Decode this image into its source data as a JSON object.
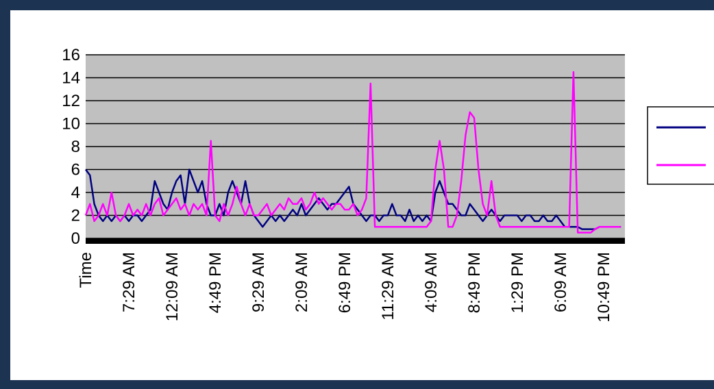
{
  "chart_data": {
    "type": "line",
    "categories": [
      "Time",
      null,
      null,
      null,
      null,
      null,
      null,
      null,
      null,
      null,
      "7:29 AM",
      null,
      null,
      null,
      null,
      null,
      null,
      null,
      null,
      null,
      "12:09 AM",
      null,
      null,
      null,
      null,
      null,
      null,
      null,
      null,
      null,
      "4:49 PM",
      null,
      null,
      null,
      null,
      null,
      null,
      null,
      null,
      null,
      "9:29 AM",
      null,
      null,
      null,
      null,
      null,
      null,
      null,
      null,
      null,
      "2:09 AM",
      null,
      null,
      null,
      null,
      null,
      null,
      null,
      null,
      null,
      "6:49 PM",
      null,
      null,
      null,
      null,
      null,
      null,
      null,
      null,
      null,
      "11:29 AM",
      null,
      null,
      null,
      null,
      null,
      null,
      null,
      null,
      null,
      "4:09 AM",
      null,
      null,
      null,
      null,
      null,
      null,
      null,
      null,
      null,
      "8:49 PM",
      null,
      null,
      null,
      null,
      null,
      null,
      null,
      null,
      null,
      "1:29 PM",
      null,
      null,
      null,
      null,
      null,
      null,
      null,
      null,
      null,
      "6:09 AM",
      null,
      null,
      null,
      null,
      null,
      null,
      null,
      null,
      null,
      "10:49 PM",
      null,
      null,
      null,
      null
    ],
    "series": [
      {
        "color": "#000080",
        "values": [
          6,
          5.5,
          3,
          2,
          1.5,
          2,
          1.5,
          2,
          1.5,
          2,
          1.5,
          2,
          2,
          1.5,
          2,
          2.5,
          5,
          4,
          3,
          2.5,
          4,
          5,
          5.5,
          3,
          6,
          5,
          4,
          5,
          3,
          2,
          2,
          3,
          2,
          4,
          5,
          4,
          3,
          5,
          3,
          2,
          1.5,
          1,
          1.5,
          2,
          1.5,
          2,
          1.5,
          2,
          2.5,
          2,
          3,
          2,
          2.5,
          3,
          3.5,
          3,
          2.5,
          3,
          3,
          3.5,
          4,
          4.5,
          3,
          2.5,
          2,
          1.5,
          2,
          2,
          1.5,
          2,
          2,
          3,
          2,
          2,
          1.5,
          2.5,
          1.5,
          2,
          1.5,
          2,
          1.5,
          4,
          5,
          4,
          3,
          3,
          2.5,
          2,
          2,
          3,
          2.5,
          2,
          1.5,
          2,
          2.5,
          2,
          1.5,
          2,
          2,
          2,
          2,
          1.5,
          2,
          2,
          1.5,
          1.5,
          2,
          1.5,
          1.5,
          2,
          1.5,
          1,
          1,
          1,
          1,
          0.8,
          0.8,
          0.8,
          0.8,
          1,
          1,
          1,
          1,
          1,
          1
        ]
      },
      {
        "color": "#ff00ff",
        "values": [
          2,
          3,
          1.5,
          2,
          3,
          2,
          4,
          2,
          1.5,
          2,
          3,
          2,
          2.5,
          2,
          3,
          2,
          3,
          3.5,
          2,
          2.5,
          3,
          3.5,
          2.5,
          3,
          2,
          3,
          2.5,
          3,
          2,
          8.5,
          2,
          1.5,
          3,
          2,
          3,
          4.5,
          3,
          2,
          3,
          2,
          2,
          2.5,
          3,
          2,
          2.5,
          3,
          2.5,
          3.5,
          3,
          3,
          3.5,
          2.5,
          3,
          4,
          3,
          3.5,
          3,
          2.5,
          3,
          3,
          2.5,
          2.5,
          3,
          2,
          2.5,
          3.5,
          13.5,
          1,
          1,
          1,
          1,
          1,
          1,
          1,
          1,
          1,
          1,
          1,
          1,
          1,
          1.5,
          6,
          8.5,
          6,
          1,
          1,
          2,
          5,
          9,
          11,
          10.5,
          6,
          3,
          2,
          5,
          2,
          1,
          1,
          1,
          1,
          1,
          1,
          1,
          1,
          1,
          1,
          1,
          1,
          1,
          1,
          1,
          1,
          1,
          14.5,
          0.5,
          0.5,
          0.5,
          0.5,
          0.8,
          1,
          1,
          1,
          1,
          1,
          1
        ]
      }
    ],
    "ylim": [
      0,
      16
    ],
    "yticks": [
      0,
      2,
      4,
      6,
      8,
      10,
      12,
      14,
      16
    ],
    "grid": true,
    "legend": "right"
  }
}
